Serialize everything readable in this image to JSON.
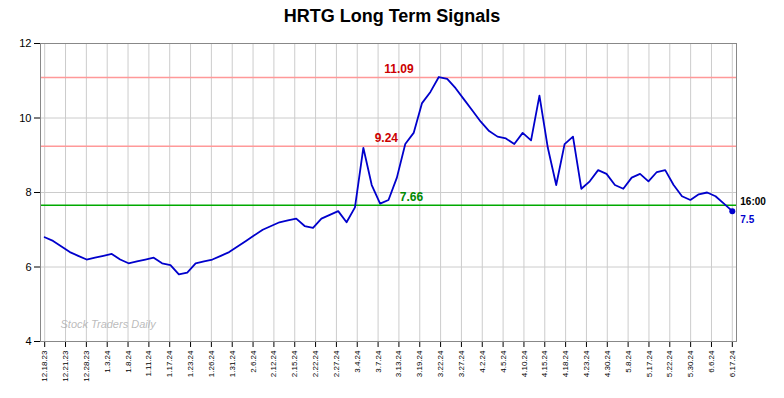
{
  "chart_data": {
    "type": "line",
    "title": "HRTG Long Term Signals",
    "color": "#0000CC",
    "values": [
      6.8,
      6.7,
      6.55,
      6.4,
      6.3,
      6.2,
      6.25,
      6.3,
      6.35,
      6.2,
      6.1,
      6.15,
      6.2,
      6.25,
      6.1,
      6.05,
      5.8,
      5.85,
      6.1,
      6.15,
      6.2,
      6.3,
      6.4,
      6.55,
      6.7,
      6.85,
      7.0,
      7.1,
      7.2,
      7.25,
      7.3,
      7.1,
      7.05,
      7.3,
      7.4,
      7.5,
      7.2,
      7.6,
      9.2,
      8.2,
      7.7,
      7.8,
      8.4,
      9.3,
      9.6,
      10.4,
      10.7,
      11.1,
      11.05,
      10.8,
      10.5,
      10.2,
      9.9,
      9.65,
      9.5,
      9.45,
      9.3,
      9.6,
      9.4,
      10.6,
      9.2,
      8.2,
      9.3,
      9.5,
      8.1,
      8.3,
      8.6,
      8.5,
      8.2,
      8.1,
      8.4,
      8.5,
      8.3,
      8.55,
      8.6,
      8.2,
      7.9,
      7.8,
      7.95,
      8.0,
      7.9,
      7.7,
      7.5
    ],
    "xlim": [
      -0.5,
      82.5
    ],
    "xticks": [
      {
        "value": 0,
        "label": "12.18.23"
      },
      {
        "value": 2.484848,
        "label": "12.21.23"
      },
      {
        "value": 4.969697,
        "label": "12.28.23"
      },
      {
        "value": 7.454545,
        "label": "1.3.24"
      },
      {
        "value": 9.939394,
        "label": "1.8.24"
      },
      {
        "value": 12.424242,
        "label": "1.11.24"
      },
      {
        "value": 14.909091,
        "label": "1.17.24"
      },
      {
        "value": 17.393939,
        "label": "1.23.24"
      },
      {
        "value": 19.878788,
        "label": "1.26.24"
      },
      {
        "value": 22.363636,
        "label": "1.31.24"
      },
      {
        "value": 24.848485,
        "label": "2.6.24"
      },
      {
        "value": 27.333333,
        "label": "2.12.24"
      },
      {
        "value": 29.818182,
        "label": "2.15.24"
      },
      {
        "value": 32.30303,
        "label": "2.22.24"
      },
      {
        "value": 34.787879,
        "label": "2.27.24"
      },
      {
        "value": 37.272727,
        "label": "3.4.24"
      },
      {
        "value": 39.757576,
        "label": "3.7.24"
      },
      {
        "value": 42.242424,
        "label": "3.13.24"
      },
      {
        "value": 44.727273,
        "label": "3.19.24"
      },
      {
        "value": 47.212121,
        "label": "3.22.24"
      },
      {
        "value": 49.69697,
        "label": "3.27.24"
      },
      {
        "value": 52.181818,
        "label": "4.2.24"
      },
      {
        "value": 54.666667,
        "label": "4.5.24"
      },
      {
        "value": 57.151515,
        "label": "4.10.24"
      },
      {
        "value": 59.636364,
        "label": "4.15.24"
      },
      {
        "value": 62.121212,
        "label": "4.18.24"
      },
      {
        "value": 64.606061,
        "label": "4.23.24"
      },
      {
        "value": 67.090909,
        "label": "4.30.24"
      },
      {
        "value": 69.575758,
        "label": "5.8.24"
      },
      {
        "value": 72.060606,
        "label": "5.17.24"
      },
      {
        "value": 74.545455,
        "label": "5.22.24"
      },
      {
        "value": 77.030303,
        "label": "5.30.24"
      },
      {
        "value": 79.515152,
        "label": "6.6.24"
      },
      {
        "value": 82,
        "label": "6.17.24"
      }
    ],
    "ylim": [
      4,
      12
    ],
    "yticks": [
      4,
      6,
      8,
      10,
      12
    ],
    "grid": true,
    "reference_lines": [
      {
        "y": 11.09,
        "color": "#FF9999",
        "label": "11.09",
        "label_color": "#CC0000"
      },
      {
        "y": 9.24,
        "color": "#FF9999",
        "label": "9.24",
        "label_color": "#CC0000"
      },
      {
        "y": 7.66,
        "color": "#00AA00",
        "label": "7.66",
        "label_color": "#008800"
      }
    ],
    "end_labels": [
      {
        "text": "16:00",
        "color": "#000000"
      },
      {
        "text": "7.5",
        "color": "#0000CC"
      }
    ],
    "watermark": "Stock Traders Daily",
    "watermark_color": "#aaaaaa"
  }
}
